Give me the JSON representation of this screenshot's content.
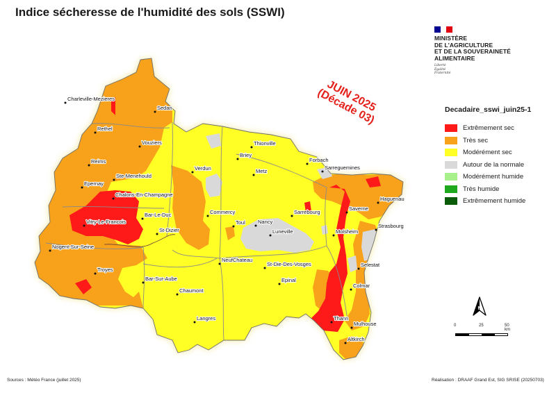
{
  "title": "Indice sécheresse de l'humidité des sols (SSWI)",
  "period": {
    "line1": "JUIN 2025",
    "line2": "(Décade 03)"
  },
  "ministry": {
    "lines": [
      "MINISTÈRE",
      "DE L'AGRICULTURE",
      "ET DE LA SOUVERAINETÉ",
      "ALIMENTAIRE"
    ],
    "motto": [
      "Liberté",
      "Égalité",
      "Fraternité"
    ],
    "flag_colors": [
      "#000091",
      "#ffffff",
      "#e1000f"
    ]
  },
  "legend": {
    "title": "Decadaire_sswi_juin25-1",
    "items": [
      {
        "label": "Extrêmement sec",
        "color": "#ff1a1a"
      },
      {
        "label": "Très sec",
        "color": "#f7a21a"
      },
      {
        "label": "Modérément sec",
        "color": "#ffff26"
      },
      {
        "label": "Autour de la normale",
        "color": "#d9d9d9"
      },
      {
        "label": "Modérément humide",
        "color": "#a8f08c"
      },
      {
        "label": "Très humide",
        "color": "#1ea81e"
      },
      {
        "label": "Extrêmement humide",
        "color": "#0a5c0a"
      }
    ]
  },
  "north_arrow": {
    "letter": "N",
    "icon": "north-arrow-icon"
  },
  "scale": {
    "labels": [
      "0",
      "25",
      "50 km"
    ]
  },
  "towns": [
    {
      "name": "Charleville-Mezieres"
    },
    {
      "name": "Sedan"
    },
    {
      "name": "Rethel"
    },
    {
      "name": "Vouziers"
    },
    {
      "name": "Reims"
    },
    {
      "name": "Ste-Menehould"
    },
    {
      "name": "Epernay"
    },
    {
      "name": "Chalons-En-Champagne"
    },
    {
      "name": "Vitry-Le-Francois"
    },
    {
      "name": "Bar-Le-Duc"
    },
    {
      "name": "St-Dizier"
    },
    {
      "name": "Nogent-Sur-Seine"
    },
    {
      "name": "Troyes"
    },
    {
      "name": "Bar-Sur-Aube"
    },
    {
      "name": "Chaumont"
    },
    {
      "name": "Langres"
    },
    {
      "name": "Verdun"
    },
    {
      "name": "Briey"
    },
    {
      "name": "Thionville"
    },
    {
      "name": "Metz"
    },
    {
      "name": "Commercy"
    },
    {
      "name": "Toul"
    },
    {
      "name": "Nancy"
    },
    {
      "name": "Luneville"
    },
    {
      "name": "NeufChateau"
    },
    {
      "name": "St-Die-Des-Vosges"
    },
    {
      "name": "Epinal"
    },
    {
      "name": "Forbach"
    },
    {
      "name": "Sarreguemines"
    },
    {
      "name": "Sarrebourg"
    },
    {
      "name": "Saverne"
    },
    {
      "name": "Haguenau"
    },
    {
      "name": "Strasbourg"
    },
    {
      "name": "Molsheim"
    },
    {
      "name": "Selestat"
    },
    {
      "name": "Colmar"
    },
    {
      "name": "Thann"
    },
    {
      "name": "Mulhouse"
    },
    {
      "name": "Altkirch"
    }
  ],
  "footer": {
    "left": "Sources : Météo France (juillet 2025)",
    "right": "Réalisation : DRAAF Grand Est, SIG SRISE (20250703)"
  }
}
